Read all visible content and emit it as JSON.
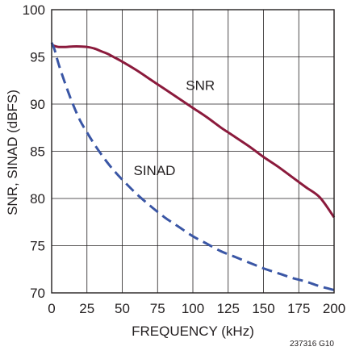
{
  "chart_data": {
    "type": "line",
    "title": "",
    "xlabel": "FREQUENCY (kHz)",
    "ylabel": "SNR, SINAD (dBFS)",
    "xlim": [
      0,
      200
    ],
    "ylim": [
      70,
      100
    ],
    "x_ticks": [
      0,
      25,
      50,
      75,
      100,
      125,
      150,
      175,
      200
    ],
    "y_ticks": [
      70,
      75,
      80,
      85,
      90,
      95,
      100
    ],
    "grid": true,
    "figure_code": "237316 G10",
    "series": [
      {
        "name": "SNR",
        "color": "#8b1a3c",
        "dash": "solid",
        "label_at": [
          95,
          91.5
        ],
        "x": [
          0,
          2,
          5,
          10,
          15,
          20,
          25,
          30,
          35,
          40,
          45,
          50,
          60,
          70,
          80,
          90,
          100,
          110,
          120,
          130,
          140,
          150,
          160,
          170,
          180,
          190,
          200
        ],
        "y": [
          96.3,
          96.15,
          96.05,
          96.05,
          96.1,
          96.1,
          96.05,
          95.9,
          95.6,
          95.3,
          94.9,
          94.5,
          93.6,
          92.6,
          91.6,
          90.6,
          89.6,
          88.6,
          87.5,
          86.5,
          85.5,
          84.4,
          83.4,
          82.3,
          81.2,
          80.1,
          78.0
        ]
      },
      {
        "name": "SINAD",
        "color": "#3a56a5",
        "dash": "dashed",
        "label_at": [
          58,
          82.5
        ],
        "x": [
          0,
          2,
          5,
          10,
          15,
          20,
          25,
          30,
          35,
          40,
          45,
          50,
          60,
          70,
          80,
          90,
          100,
          110,
          120,
          130,
          140,
          150,
          160,
          170,
          180,
          190,
          200
        ],
        "y": [
          96.5,
          95.8,
          94.2,
          92.0,
          90.0,
          88.3,
          87.0,
          85.8,
          84.7,
          83.7,
          82.8,
          82.0,
          80.5,
          79.2,
          78.0,
          77.0,
          76.0,
          75.2,
          74.4,
          73.8,
          73.2,
          72.6,
          72.1,
          71.6,
          71.2,
          70.7,
          70.3
        ]
      }
    ]
  }
}
